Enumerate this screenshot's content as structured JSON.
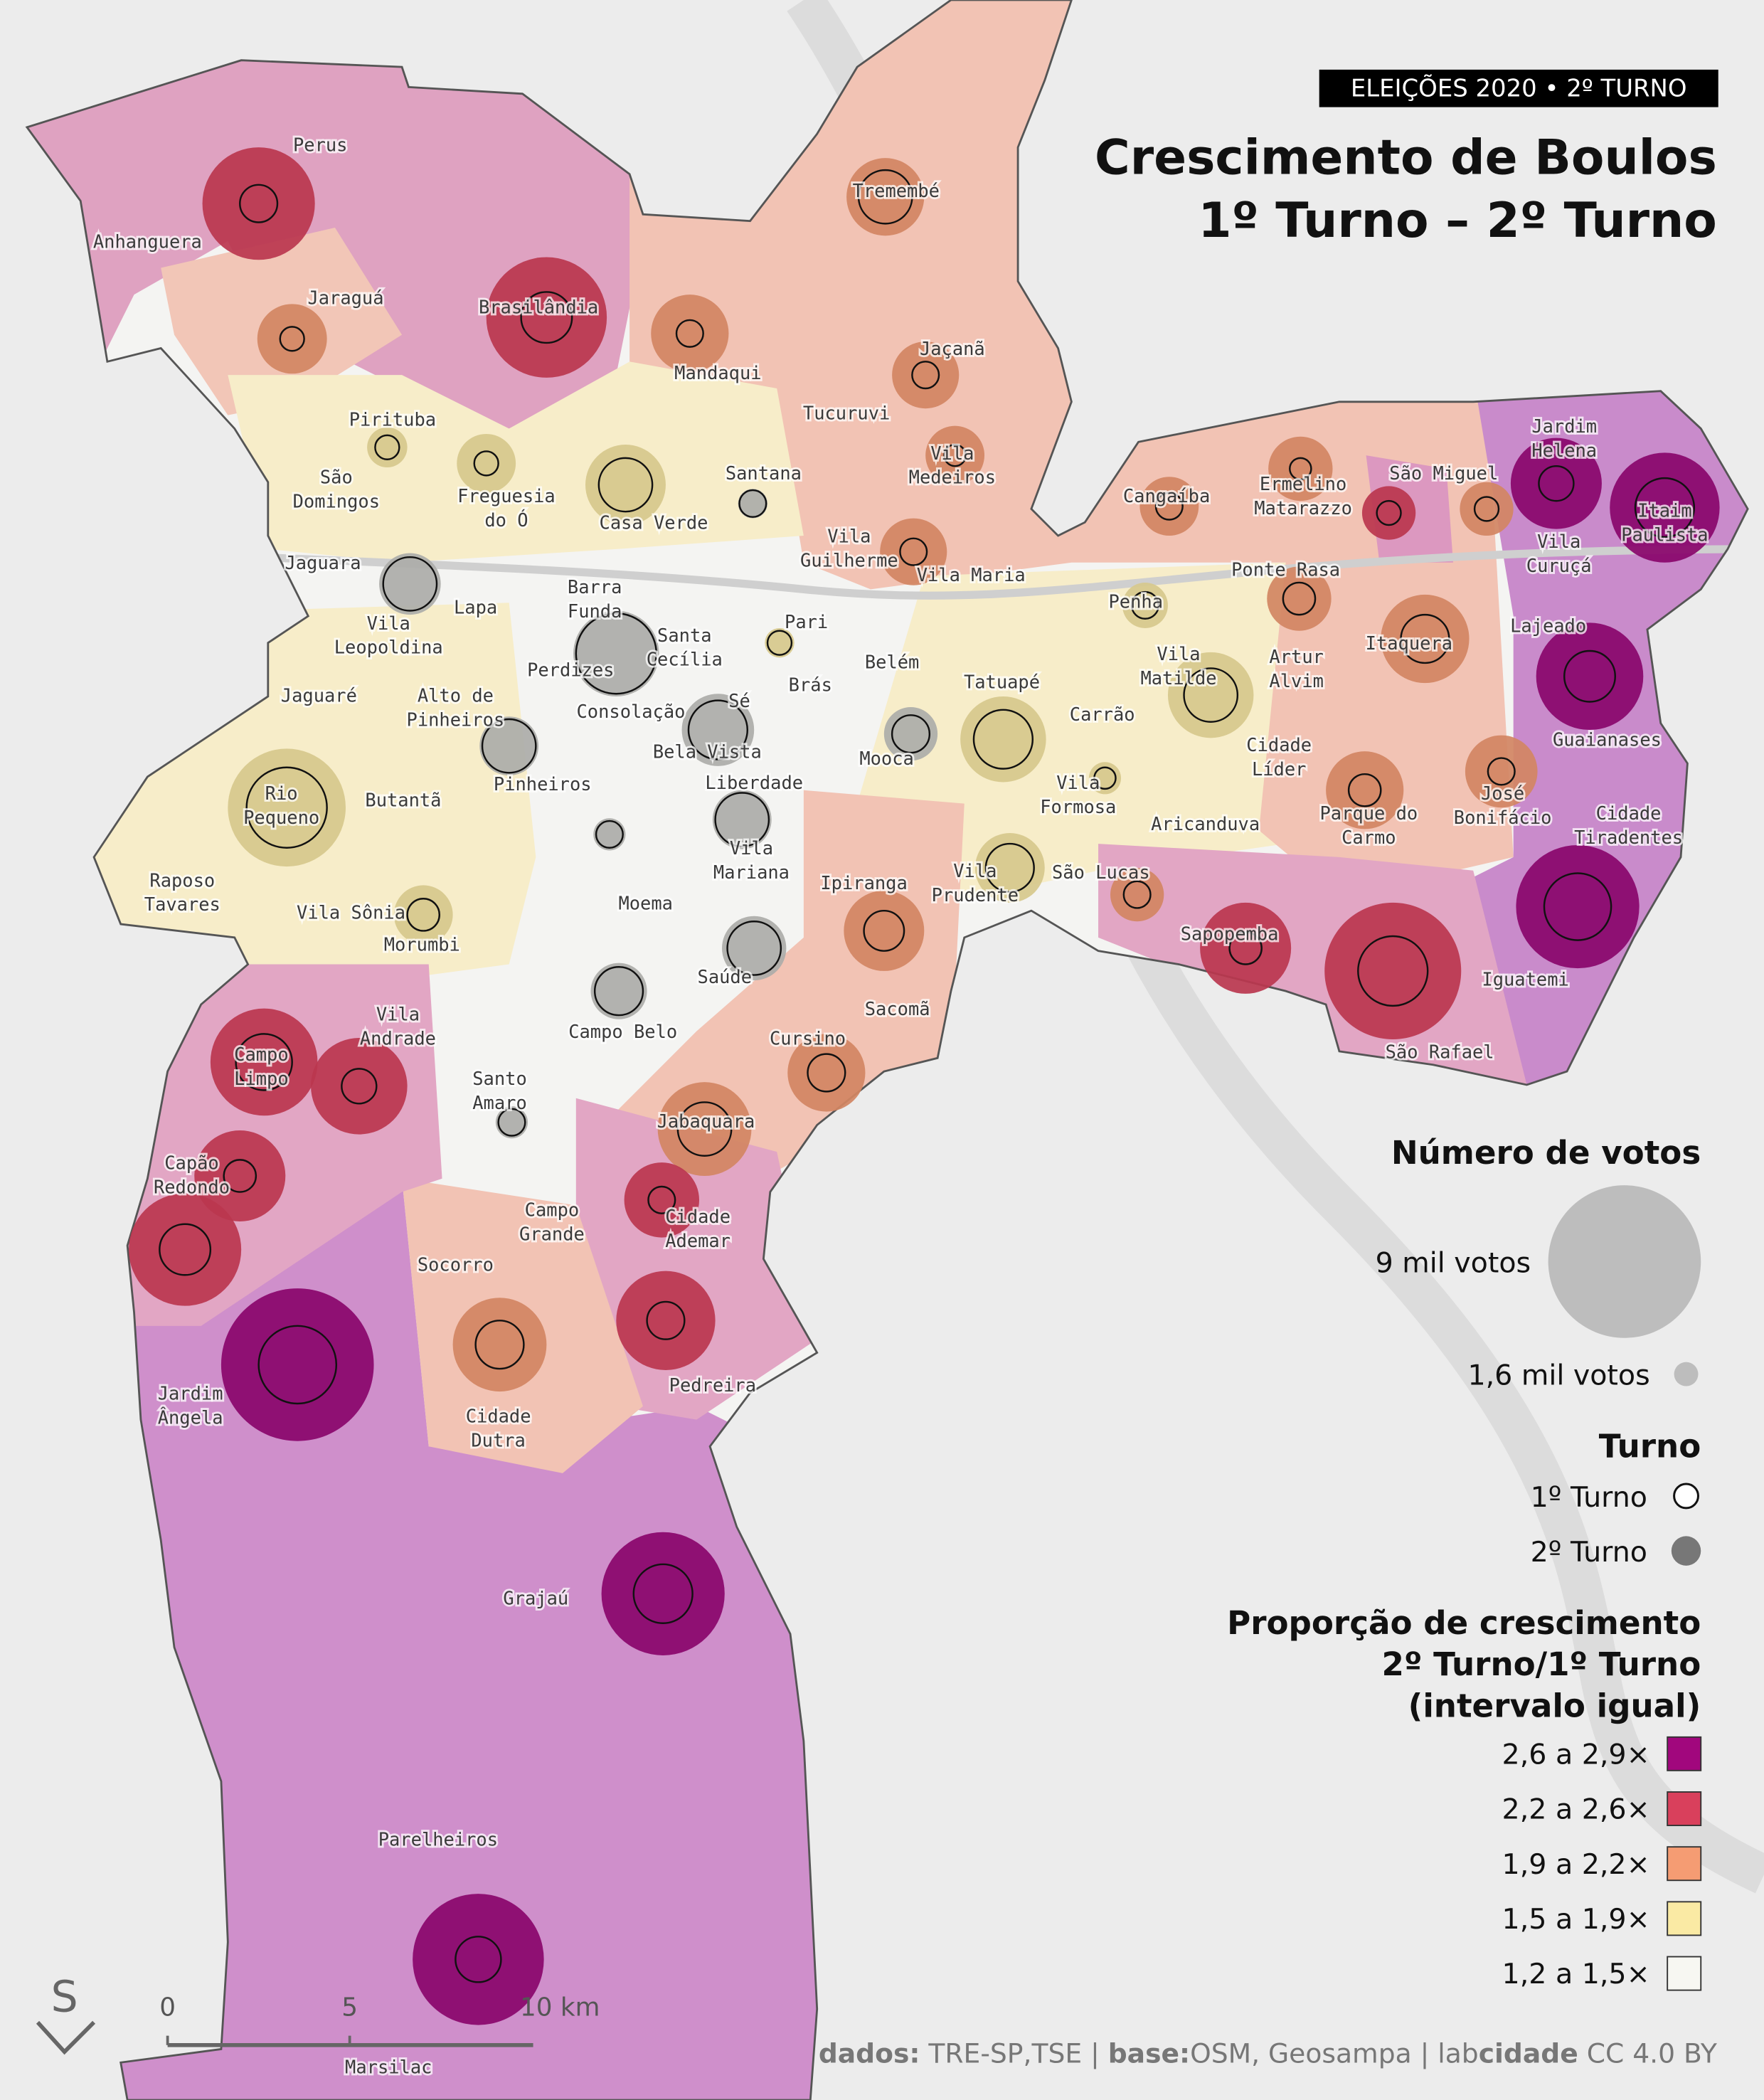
{
  "badge": "ELEIÇÕES 2020 • 2º TURNO",
  "title": [
    "Crescimento de Boulos",
    "1º Turno – 2º Turno"
  ],
  "districts": [
    [
      "Perus"
    ],
    [
      "Anhanguera"
    ],
    [
      "Jaraguá"
    ],
    [
      "Brasilândia"
    ],
    [
      "Tremembé"
    ],
    [
      "Mandaqui"
    ],
    [
      "Jaçanã"
    ],
    [
      "Tucuruvi"
    ],
    [
      "Pirituba"
    ],
    [
      "São",
      "Domingos"
    ],
    [
      "Freguesia",
      "do Ó"
    ],
    [
      "Casa Verde"
    ],
    [
      "Santana"
    ],
    [
      "Vila",
      "Medeiros"
    ],
    [
      "Vila",
      "Guilherme"
    ],
    [
      "Vila Maria"
    ],
    [
      "Jaguara"
    ],
    [
      "Lapa"
    ],
    [
      "Vila",
      "Leopoldina"
    ],
    [
      "Barra",
      "Funda"
    ],
    [
      "Perdizes"
    ],
    [
      "Santa",
      "Cecília"
    ],
    [
      "Pari"
    ],
    [
      "Brás"
    ],
    [
      "Belém"
    ],
    [
      "Sé"
    ],
    [
      "Consolação"
    ],
    [
      "Bela Vista"
    ],
    [
      "Jaguaré"
    ],
    [
      "Alto de",
      "Pinheiros"
    ],
    [
      "Pinheiros"
    ],
    [
      "Liberdade"
    ],
    [
      "Mooca"
    ],
    [
      "Tatuapé"
    ],
    [
      "Carrão"
    ],
    [
      "Penha"
    ],
    [
      "Vila",
      "Matilde"
    ],
    [
      "Cidade",
      "Líder"
    ],
    [
      "Vila",
      "Formosa"
    ],
    [
      "Aricanduva"
    ],
    [
      "Rio",
      "Pequeno"
    ],
    [
      "Butantã"
    ],
    [
      "Raposo",
      "Tavares"
    ],
    [
      "Vila Sônia"
    ],
    [
      "Morumbi"
    ],
    [
      "Vila",
      "Mariana"
    ],
    [
      "Moema"
    ],
    [
      "Ipiranga"
    ],
    [
      "Vila",
      "Prudente"
    ],
    [
      "São Lucas"
    ],
    [
      "Sapopemba"
    ],
    [
      "Saúde"
    ],
    [
      "Sacomã"
    ],
    [
      "Campo Belo"
    ],
    [
      "Cursino"
    ],
    [
      "Vila",
      "Andrade"
    ],
    [
      "Campo",
      "Limpo"
    ],
    [
      "Santo",
      "Amaro"
    ],
    [
      "Jabaquara"
    ],
    [
      "Capão",
      "Redondo"
    ],
    [
      "Cidade",
      "Ademar"
    ],
    [
      "Campo",
      "Grande"
    ],
    [
      "Socorro"
    ],
    [
      "Jardim",
      "Ângela"
    ],
    [
      "Cidade",
      "Dutra"
    ],
    [
      "Pedreira"
    ],
    [
      "Grajaú"
    ],
    [
      "Parelheiros"
    ],
    [
      "Marsilac"
    ],
    [
      "Cangaíba"
    ],
    [
      "Ermelino",
      "Matarazzo"
    ],
    [
      "São Miguel"
    ],
    [
      "Jardim",
      "Helena"
    ],
    [
      "Itaim",
      "Paulista"
    ],
    [
      "Vila",
      "Curuçá"
    ],
    [
      "Ponte Rasa"
    ],
    [
      "Artur",
      "Alvim"
    ],
    [
      "Itaquera"
    ],
    [
      "Lajeado"
    ],
    [
      "Guaianases"
    ],
    [
      "José",
      "Bonifácio"
    ],
    [
      "Parque do",
      "Carmo"
    ],
    [
      "Cidade",
      "Tiradentes"
    ],
    [
      "Iguatemi"
    ],
    [
      "São Rafael"
    ]
  ],
  "legend": {
    "size_title": "Número de votos",
    "sizes": [
      "9 mil votos",
      "1,6 mil votos"
    ],
    "turn_title": "Turno",
    "turns": [
      "1º Turno",
      "2º Turno"
    ],
    "class_title": [
      "Proporção de crescimento",
      "2º Turno/1º Turno",
      "(intervalo igual)"
    ],
    "classes": [
      {
        "label": "2,6 a 2,9×",
        "color": "#a1077d"
      },
      {
        "label": "2,2 a 2,6×",
        "color": "#d9405c"
      },
      {
        "label": "1,9 a 2,2×",
        "color": "#f59c73"
      },
      {
        "label": "1,5 a 1,9×",
        "color": "#faeaa4"
      },
      {
        "label": "1,2 a 1,5×",
        "color": "#f7f7f2"
      }
    ]
  },
  "scale": [
    "0",
    "5",
    "10 km"
  ],
  "logo": "S",
  "credits": [
    {
      "text": "dados:",
      "bold": true
    },
    {
      "text": " TRE-SP,TSE | ",
      "bold": false
    },
    {
      "text": "base:",
      "bold": true
    },
    {
      "text": "OSM, Geosampa | lab",
      "bold": false
    },
    {
      "text": "cidade",
      "bold": true
    },
    {
      "text": " CC 4.0 BY",
      "bold": false
    }
  ]
}
